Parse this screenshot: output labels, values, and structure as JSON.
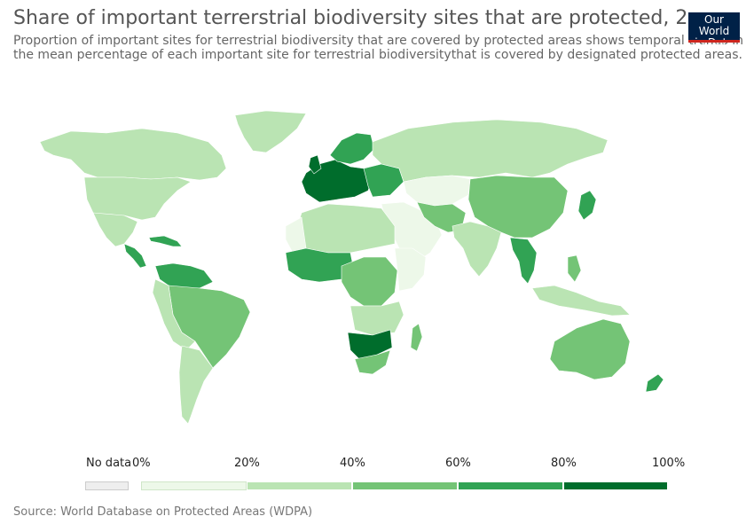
{
  "header": {
    "title": "Share of important terrerstrial biodiversity sites that are protected, 20",
    "subtitle": "Proportion of important sites for terrestrial biodiversity that are covered by protected areas shows temporal trends in the mean percentage of each important site for terrestrial biodiversitythat is covered by designated protected areas."
  },
  "logo": {
    "line1": "Our World",
    "line2": "in Data"
  },
  "legend": {
    "no_data_label": "No data",
    "tick_labels": [
      "0%",
      "20%",
      "40%",
      "60%",
      "80%",
      "100%"
    ],
    "colors": [
      "#edf8e9",
      "#bae4b3",
      "#74c476",
      "#31a354",
      "#006d2c"
    ],
    "no_data_color": "#eeeeee"
  },
  "source": {
    "text": "Source: World Database on Protected Areas (WDPA)"
  },
  "colors": {
    "title": "#555555",
    "subtitle": "#666666",
    "logo_bg": "#002147",
    "logo_bar": "#ce261e"
  }
}
